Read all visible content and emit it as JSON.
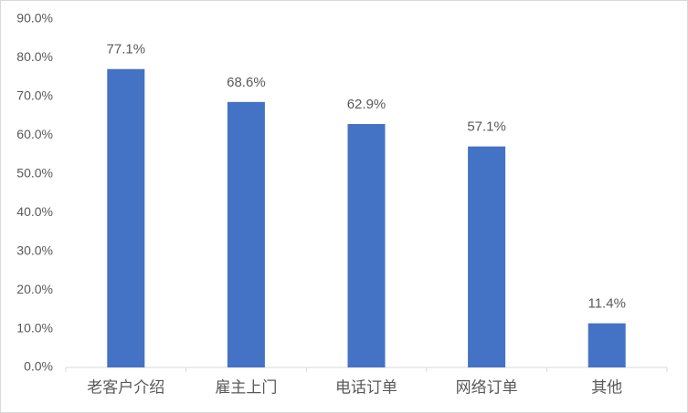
{
  "chart_data": {
    "type": "bar",
    "categories": [
      "老客户介绍",
      "雇主上门",
      "电话订单",
      "网络订单",
      "其他"
    ],
    "values": [
      77.1,
      68.6,
      62.9,
      57.1,
      11.4
    ],
    "value_labels": [
      "77.1%",
      "68.6%",
      "62.9%",
      "57.1%",
      "11.4%"
    ],
    "color": "#4472c4",
    "ylim": [
      0,
      90
    ],
    "yticks": [
      {
        "value": 0,
        "label": "0.0%"
      },
      {
        "value": 10,
        "label": "10.0%"
      },
      {
        "value": 20,
        "label": "20.0%"
      },
      {
        "value": 30,
        "label": "30.0%"
      },
      {
        "value": 40,
        "label": "40.0%"
      },
      {
        "value": 50,
        "label": "50.0%"
      },
      {
        "value": 60,
        "label": "60.0%"
      },
      {
        "value": 70,
        "label": "70.0%"
      },
      {
        "value": 80,
        "label": "80.0%"
      },
      {
        "value": 90,
        "label": "90.0%"
      }
    ],
    "grid": false
  }
}
